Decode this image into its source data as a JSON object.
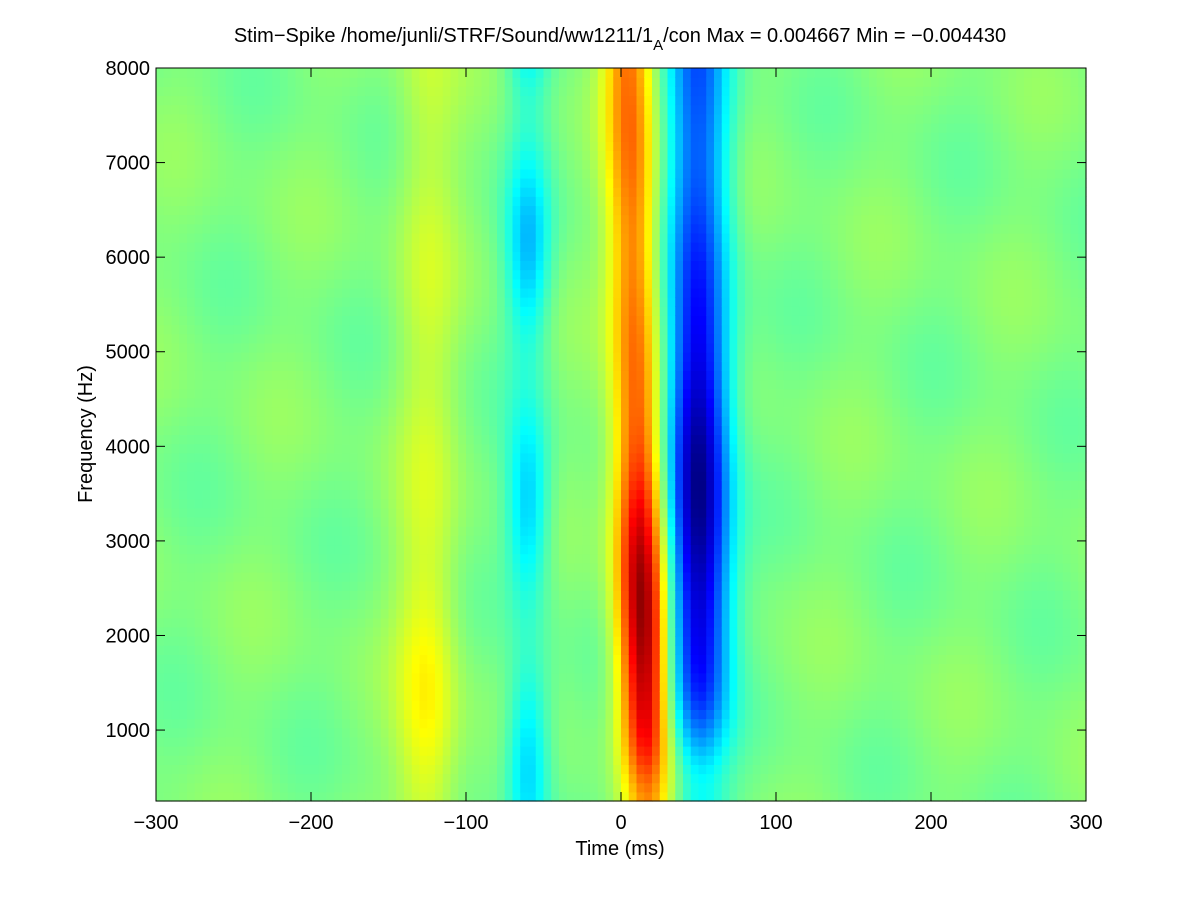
{
  "chart_data": {
    "type": "heatmap",
    "title_prefix": "Stim−Spike /home/junli/STRF/Sound/ww1211/1",
    "title_subscript": "A",
    "title_suffix": "/con Max = 0.004667 Min = −0.004430",
    "xlabel": "Time (ms)",
    "ylabel": "Frequency (Hz)",
    "xlim": [
      -300,
      300
    ],
    "ylim": [
      250,
      8000
    ],
    "max_value": 0.004667,
    "min_value": -0.00443,
    "colormap": "jet",
    "xticks": [
      -300,
      -200,
      -100,
      0,
      100,
      200,
      300
    ],
    "xtick_labels": [
      "−300",
      "−200",
      "−100",
      "0",
      "100",
      "200",
      "300"
    ],
    "yticks": [
      1000,
      2000,
      3000,
      4000,
      5000,
      6000,
      7000,
      8000
    ],
    "ytick_labels": [
      "1000",
      "2000",
      "3000",
      "4000",
      "5000",
      "6000",
      "7000",
      "8000"
    ],
    "features": [
      {
        "name": "excitatory-band",
        "time_ms": 5,
        "width_ms": 16,
        "sign": 1,
        "peak_freq_hz": 2200,
        "peak_value": 0.004667
      },
      {
        "name": "inhibitory-band",
        "time_ms": 50,
        "width_ms": 20,
        "sign": -1,
        "peak_freq_hz": 3500,
        "peak_value": -0.00443
      },
      {
        "name": "weak-inhibitory-band",
        "time_ms": -60,
        "width_ms": 14,
        "sign": -1,
        "peak_value": -0.0016
      },
      {
        "name": "weak-excitatory-band",
        "time_ms": -125,
        "width_ms": 20,
        "sign": 1,
        "peak_freq_hz": 1300,
        "peak_value": 0.0012
      }
    ]
  }
}
